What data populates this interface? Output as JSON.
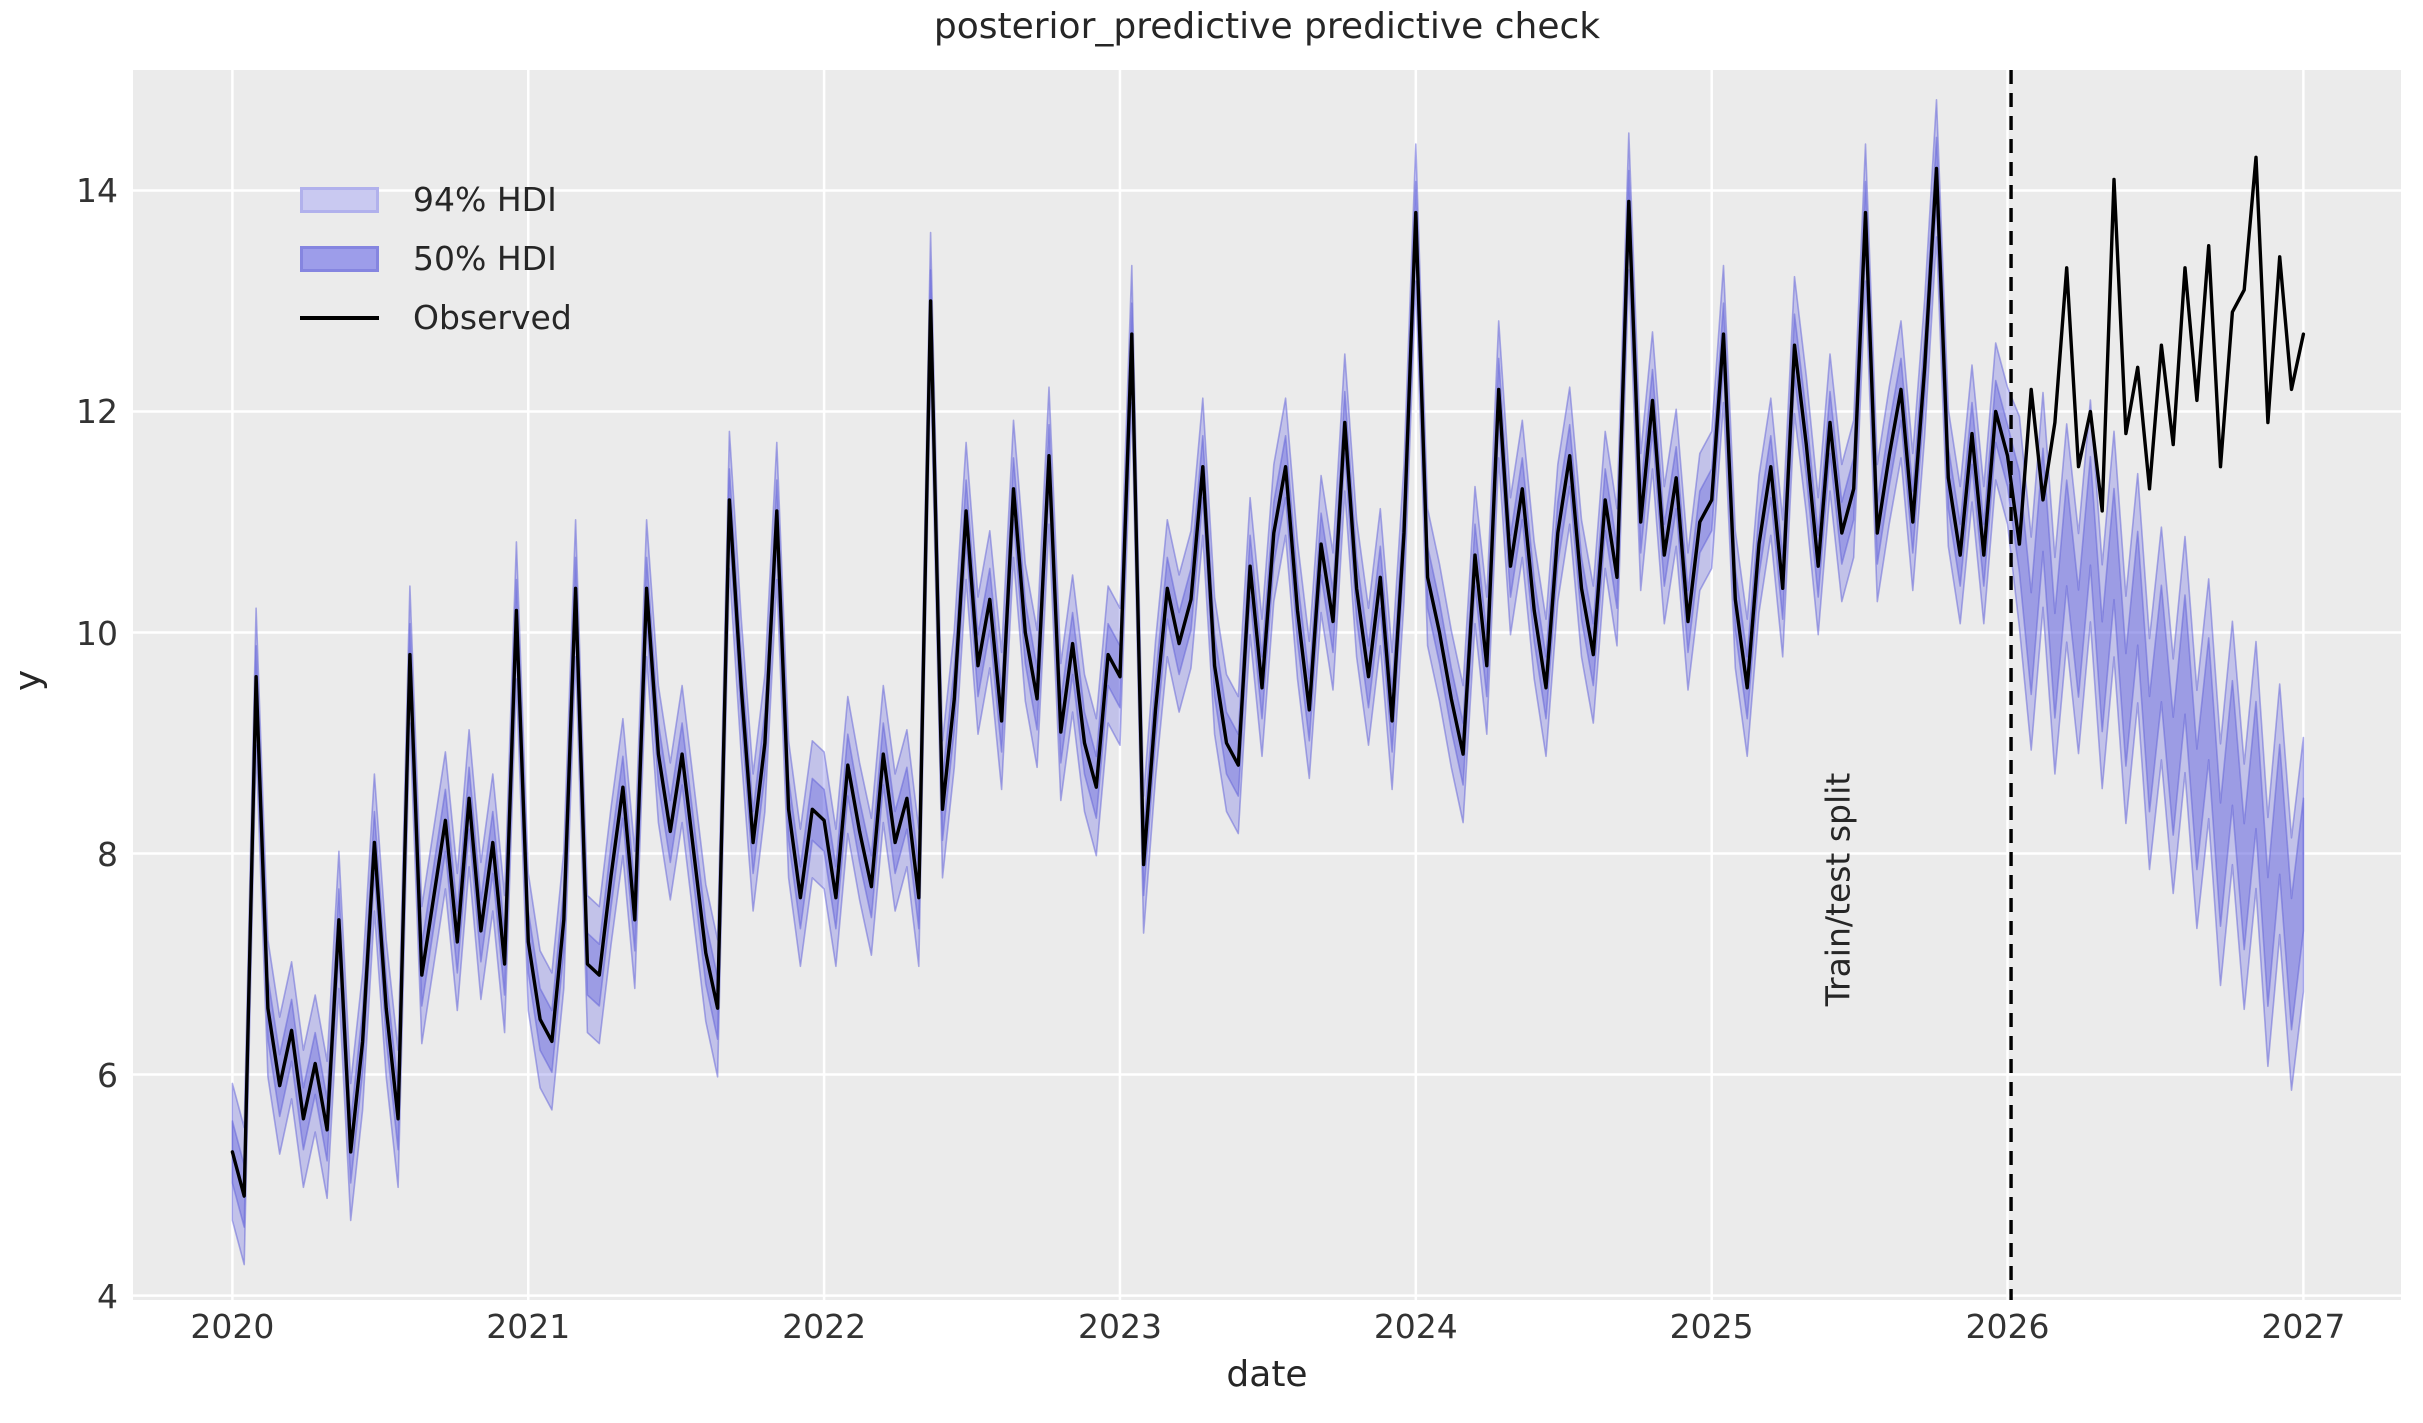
{
  "title": "posterior_predictive predictive check",
  "colors": {
    "figure_background": "#ffffff",
    "axes_background": "#ebebeb",
    "gridline": "#ffffff",
    "observed_line": "#000000",
    "hdi_base": "#6e6ee0",
    "hdi94_fill": "rgba(112,112,230,0.33)",
    "hdi50_fill": "rgba(106,106,222,0.42)",
    "hdi_edge": "rgba(95,95,215,0.5)",
    "split_line": "#000000",
    "text": "#262626"
  },
  "annotations": {
    "split_label": "Train/test split"
  },
  "chart_data": {
    "type": "line",
    "title": "posterior_predictive predictive check",
    "xlabel": "date",
    "ylabel": "y",
    "xlim": [
      2019.664,
      2027.33
    ],
    "ylim": [
      3.96,
      15.09
    ],
    "xticks": [
      2020,
      2021,
      2022,
      2023,
      2024,
      2025,
      2026,
      2027
    ],
    "yticks": [
      4,
      6,
      8,
      10,
      12,
      14
    ],
    "grid": true,
    "legend_position": "upper left",
    "split_x": 2026.012,
    "x_start": 2020.0,
    "x_step": 0.04,
    "n_points": 176,
    "series": [
      {
        "name": "94% HDI",
        "type": "band"
      },
      {
        "name": "50% HDI",
        "type": "band"
      },
      {
        "name": "Observed",
        "type": "line"
      }
    ],
    "observed": [
      5.3,
      4.9,
      9.6,
      6.6,
      5.9,
      6.4,
      5.6,
      6.1,
      5.5,
      7.4,
      5.3,
      6.3,
      8.1,
      6.6,
      5.6,
      9.8,
      6.9,
      7.6,
      8.3,
      7.2,
      8.5,
      7.3,
      8.1,
      7.0,
      10.2,
      7.2,
      6.5,
      6.3,
      7.4,
      10.4,
      7.0,
      6.9,
      7.8,
      8.6,
      7.4,
      10.4,
      8.9,
      8.2,
      8.9,
      8.0,
      7.1,
      6.6,
      11.2,
      9.5,
      8.1,
      9.0,
      11.1,
      8.4,
      7.6,
      8.4,
      8.3,
      7.6,
      8.8,
      8.2,
      7.7,
      8.9,
      8.1,
      8.5,
      7.6,
      13.0,
      8.4,
      9.4,
      11.1,
      9.7,
      10.3,
      9.2,
      11.3,
      10.0,
      9.4,
      11.6,
      9.1,
      9.9,
      9.0,
      8.6,
      9.8,
      9.6,
      12.7,
      7.9,
      9.3,
      10.4,
      9.9,
      10.3,
      11.5,
      9.7,
      9.0,
      8.8,
      10.6,
      9.5,
      10.9,
      11.5,
      10.2,
      9.3,
      10.8,
      10.1,
      11.9,
      10.4,
      9.6,
      10.5,
      9.2,
      10.9,
      13.8,
      10.5,
      10.0,
      9.4,
      8.9,
      10.7,
      9.7,
      12.2,
      10.6,
      11.3,
      10.2,
      9.5,
      10.9,
      11.6,
      10.4,
      9.8,
      11.2,
      10.5,
      13.9,
      11.0,
      12.1,
      10.7,
      11.4,
      10.1,
      11.0,
      11.2,
      12.7,
      10.3,
      9.5,
      10.8,
      11.5,
      10.4,
      12.6,
      11.7,
      10.6,
      11.9,
      10.9,
      11.3,
      13.8,
      10.9,
      11.6,
      12.2,
      11.0,
      12.4,
      14.2,
      11.4,
      10.7,
      11.8,
      10.7,
      12.0,
      11.6,
      10.8,
      12.2,
      11.2,
      11.9,
      13.3,
      11.5,
      12.0,
      11.1,
      14.1,
      11.8,
      12.4,
      11.3,
      12.6,
      11.7,
      13.3,
      12.1,
      13.5,
      11.5,
      12.9,
      13.1,
      14.3,
      11.9,
      13.4,
      12.2,
      12.7
    ],
    "predicted_mean": [
      5.3,
      4.9,
      9.6,
      6.6,
      5.9,
      6.4,
      5.6,
      6.1,
      5.5,
      7.4,
      5.3,
      6.3,
      8.1,
      6.6,
      5.6,
      9.8,
      6.9,
      7.6,
      8.3,
      7.2,
      8.5,
      7.3,
      8.1,
      7.0,
      10.2,
      7.2,
      6.5,
      6.3,
      7.4,
      10.4,
      7.0,
      6.9,
      7.8,
      8.6,
      7.4,
      10.4,
      8.9,
      8.2,
      8.9,
      8.0,
      7.1,
      6.6,
      11.2,
      9.5,
      8.1,
      9.0,
      11.1,
      8.4,
      7.6,
      8.4,
      8.3,
      7.6,
      8.8,
      8.2,
      7.7,
      8.9,
      8.1,
      8.5,
      7.6,
      13.0,
      8.4,
      9.4,
      11.1,
      9.7,
      10.3,
      9.2,
      11.3,
      10.0,
      9.4,
      11.6,
      9.1,
      9.9,
      9.0,
      8.6,
      9.8,
      9.6,
      12.7,
      7.9,
      9.3,
      10.4,
      9.9,
      10.3,
      11.5,
      9.7,
      9.0,
      8.8,
      10.6,
      9.5,
      10.9,
      11.5,
      10.2,
      9.3,
      10.8,
      10.1,
      11.9,
      10.4,
      9.6,
      10.5,
      9.2,
      10.9,
      13.8,
      10.5,
      10.0,
      9.4,
      8.9,
      10.7,
      9.7,
      12.2,
      10.6,
      11.3,
      10.2,
      9.5,
      10.9,
      11.6,
      10.4,
      9.8,
      11.2,
      10.5,
      13.9,
      11.0,
      12.1,
      10.7,
      11.4,
      10.1,
      11.0,
      11.2,
      12.7,
      10.3,
      9.5,
      10.8,
      11.5,
      10.4,
      12.6,
      11.7,
      10.6,
      11.9,
      10.9,
      11.3,
      13.8,
      10.9,
      11.6,
      12.2,
      11.0,
      12.4,
      14.2,
      11.4,
      10.7,
      11.8,
      10.7,
      12.0,
      11.6,
      11.0,
      9.9,
      11.2,
      9.7,
      10.9,
      9.9,
      11.1,
      9.6,
      10.8,
      9.3,
      10.4,
      8.9,
      9.9,
      8.7,
      9.8,
      8.4,
      9.4,
      7.9,
      9.0,
      7.7,
      8.8,
      7.2,
      8.4,
      7.0,
      7.9
    ],
    "hdi50_halfwidth": {
      "train": 0.28,
      "test_start": 0.45,
      "test_end": 0.6
    },
    "hdi94_halfwidth": {
      "train": 0.62,
      "test_start": 0.95,
      "test_end": 1.15
    }
  }
}
